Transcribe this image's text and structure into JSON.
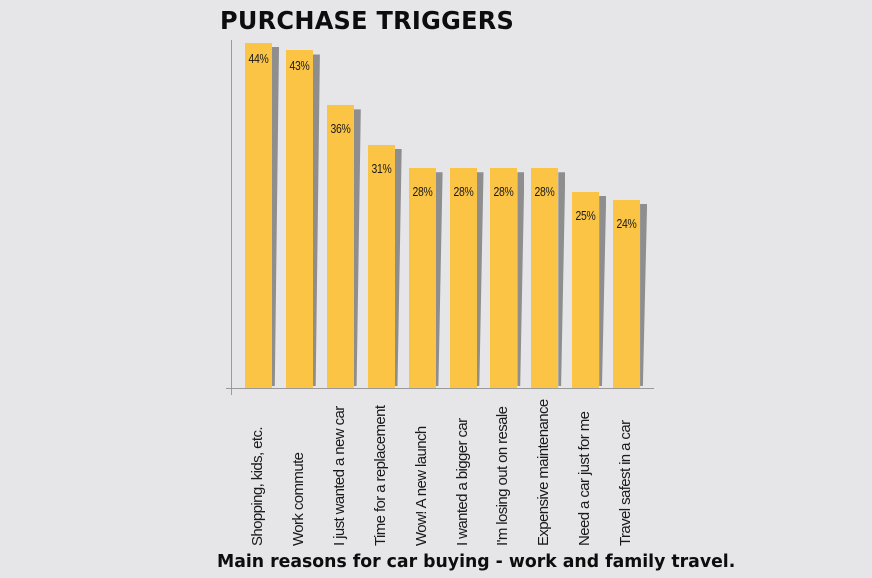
{
  "title": "PURCHASE TRIGGERS",
  "caption": "Main reasons for car buying - work and family travel.",
  "colors": {
    "bar": "#fcc445",
    "shadow": "#8e8e8e",
    "background": "#e6e6e8",
    "axis": "#9a9a9a"
  },
  "bars": [
    {
      "label": "Shopping, kids, etc.",
      "value": 44,
      "text": "44%"
    },
    {
      "label": "Work commute",
      "value": 43,
      "text": "43%"
    },
    {
      "label": "I just wanted a new car",
      "value": 36,
      "text": "36%"
    },
    {
      "label": "Time for a replacement",
      "value": 31,
      "text": "31%"
    },
    {
      "label": "Wow! A new launch",
      "value": 28,
      "text": "28%"
    },
    {
      "label": "I wanted a bigger car",
      "value": 28,
      "text": "28%"
    },
    {
      "label": "I'm losing out on resale",
      "value": 28,
      "text": "28%"
    },
    {
      "label": "Expensive maintenance",
      "value": 28,
      "text": "28%"
    },
    {
      "label": "Need a car just for me",
      "value": 25,
      "text": "25%"
    },
    {
      "label": "Travel safest in a car",
      "value": 24,
      "text": "24%"
    }
  ],
  "chart_data": {
    "type": "bar",
    "title": "PURCHASE TRIGGERS",
    "subtitle": "Main reasons for car buying - work and family travel.",
    "categories": [
      "Shopping, kids, etc.",
      "Work commute",
      "I just wanted a new car",
      "Time for a replacement",
      "Wow! A new launch",
      "I wanted a bigger car",
      "I'm losing out on resale",
      "Expensive maintenance",
      "Need a car just for me",
      "Travel safest in a car"
    ],
    "values": [
      44,
      43,
      36,
      31,
      28,
      28,
      28,
      28,
      25,
      24
    ],
    "data_labels": [
      "44%",
      "43%",
      "36%",
      "31%",
      "28%",
      "28%",
      "28%",
      "28%",
      "25%",
      "24%"
    ],
    "xlabel": "",
    "ylabel": "",
    "unit": "%",
    "ylim": [
      0,
      45
    ],
    "grid": false,
    "legend": null,
    "orientation": "vertical",
    "tick_label_rotation": -90
  }
}
